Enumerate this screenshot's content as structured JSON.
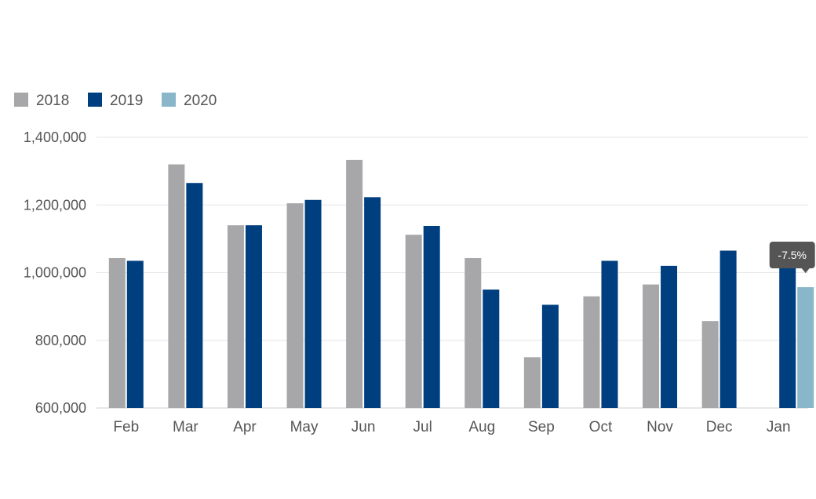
{
  "chart_data": {
    "type": "bar",
    "categories": [
      "Feb",
      "Mar",
      "Apr",
      "May",
      "Jun",
      "Jul",
      "Aug",
      "Sep",
      "Oct",
      "Nov",
      "Dec",
      "Jan"
    ],
    "series": [
      {
        "name": "2018",
        "color": "#a7a7a9",
        "values": [
          1043000,
          1320000,
          1140000,
          1205000,
          1333000,
          1112000,
          1043000,
          750000,
          930000,
          965000,
          857000,
          null
        ]
      },
      {
        "name": "2019",
        "color": "#003f7f",
        "values": [
          1035000,
          1265000,
          1140000,
          1215000,
          1223000,
          1138000,
          950000,
          905000,
          1035000,
          1020000,
          1065000,
          1035000
        ]
      },
      {
        "name": "2020",
        "color": "#89b6c9",
        "values": [
          null,
          null,
          null,
          null,
          null,
          null,
          null,
          null,
          null,
          null,
          null,
          957000
        ]
      }
    ],
    "ylim": [
      600000,
      1400000
    ],
    "yticks": [
      {
        "value": 600000,
        "label": "600,000"
      },
      {
        "value": 800000,
        "label": "800,000"
      },
      {
        "value": 1000000,
        "label": "1,000,000"
      },
      {
        "value": 1200000,
        "label": "1,200,000"
      },
      {
        "value": 1400000,
        "label": "1,400,000"
      }
    ],
    "grid": true,
    "legend_position": "top-left",
    "annotations": [
      {
        "text": "-7.5%",
        "category": "Jan",
        "series": "2020"
      }
    ]
  }
}
